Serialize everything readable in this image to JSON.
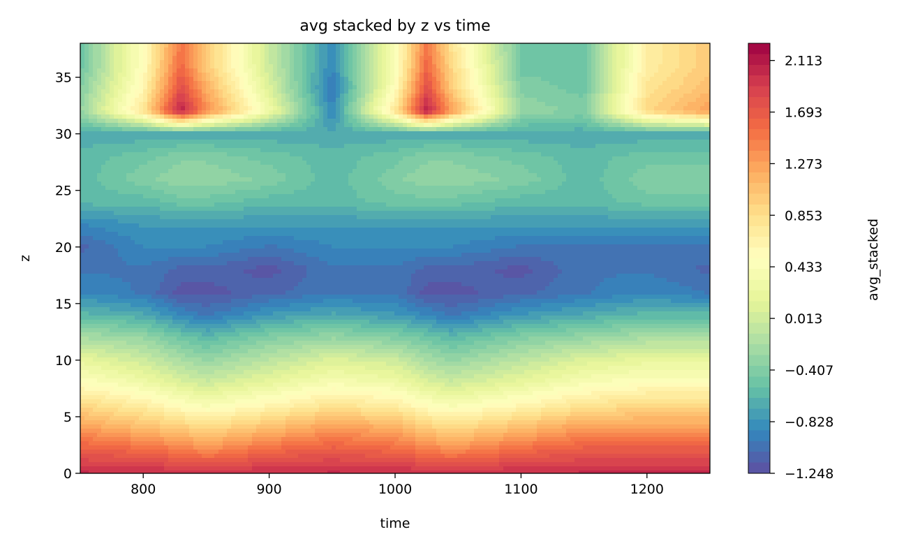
{
  "chart_data": {
    "type": "heatmap",
    "title": "avg stacked by z vs time",
    "xlabel": "time",
    "ylabel": "z",
    "colorbar_label": "avg_stacked",
    "xlim": [
      750,
      1250
    ],
    "ylim": [
      0,
      38
    ],
    "x_ticks": [
      800,
      900,
      1000,
      1100,
      1200
    ],
    "x_tick_labels": [
      "800",
      "900",
      "1000",
      "1100",
      "1200"
    ],
    "y_ticks": [
      0,
      5,
      10,
      15,
      20,
      25,
      30,
      35
    ],
    "y_tick_labels": [
      "0",
      "5",
      "10",
      "15",
      "20",
      "25",
      "30",
      "35"
    ],
    "colorbar_range": [
      -1.248,
      2.253
    ],
    "colorbar_ticks": [
      -1.248,
      -0.828,
      -0.407,
      0.013,
      0.433,
      0.853,
      1.273,
      1.693,
      2.113
    ],
    "colorbar_tick_labels": [
      "−1.248",
      "−0.828",
      "−0.407",
      "0.013",
      "0.433",
      "0.853",
      "1.273",
      "1.693",
      "2.113"
    ],
    "colormap": "Spectral_r",
    "levels": 40,
    "field_samples": {
      "z": [
        0,
        2,
        4,
        6,
        8,
        10,
        12,
        14,
        16,
        18,
        20,
        22,
        24,
        26,
        28,
        30,
        32,
        34,
        36,
        38
      ],
      "time": [
        750,
        800,
        830,
        850,
        900,
        950,
        1000,
        1025,
        1045,
        1100,
        1150,
        1200,
        1250
      ],
      "values": [
        [
          2.0,
          2.0,
          2.0,
          2.0,
          2.0,
          2.0,
          2.0,
          2.0,
          2.0,
          2.0,
          2.0,
          2.0,
          2.0
        ],
        [
          1.7,
          1.6,
          1.5,
          1.4,
          1.6,
          1.7,
          1.6,
          1.5,
          1.4,
          1.6,
          1.7,
          1.7,
          1.7
        ],
        [
          1.3,
          1.1,
          1.0,
          0.9,
          1.1,
          1.3,
          1.2,
          1.0,
          0.9,
          1.1,
          1.3,
          1.3,
          1.3
        ],
        [
          0.9,
          0.7,
          0.5,
          0.4,
          0.6,
          0.8,
          0.7,
          0.5,
          0.4,
          0.6,
          0.8,
          0.9,
          0.9
        ],
        [
          0.5,
          0.3,
          0.1,
          0.0,
          0.2,
          0.4,
          0.3,
          0.1,
          0.0,
          0.2,
          0.4,
          0.5,
          0.5
        ],
        [
          0.2,
          0.0,
          -0.2,
          -0.3,
          -0.1,
          0.1,
          0.0,
          -0.2,
          -0.3,
          -0.1,
          0.1,
          0.2,
          0.2
        ],
        [
          -0.2,
          -0.3,
          -0.5,
          -0.6,
          -0.4,
          -0.3,
          -0.4,
          -0.5,
          -0.6,
          -0.4,
          -0.3,
          -0.2,
          -0.2
        ],
        [
          -0.6,
          -0.7,
          -0.9,
          -1.0,
          -0.8,
          -0.7,
          -0.8,
          -0.9,
          -1.0,
          -0.8,
          -0.7,
          -0.6,
          -0.6
        ],
        [
          -0.9,
          -1.0,
          -1.2,
          -1.2,
          -1.1,
          -1.0,
          -1.0,
          -1.2,
          -1.2,
          -1.1,
          -1.0,
          -0.9,
          -1.0
        ],
        [
          -1.0,
          -1.0,
          -1.1,
          -1.1,
          -1.2,
          -1.0,
          -1.0,
          -1.1,
          -1.1,
          -1.2,
          -1.0,
          -1.0,
          -1.1
        ],
        [
          -1.1,
          -0.9,
          -0.9,
          -0.9,
          -1.0,
          -0.9,
          -0.9,
          -0.9,
          -0.9,
          -1.0,
          -1.0,
          -1.0,
          -1.0
        ],
        [
          -0.9,
          -0.8,
          -0.8,
          -0.8,
          -0.8,
          -0.8,
          -0.8,
          -0.8,
          -0.8,
          -0.8,
          -0.8,
          -0.8,
          -0.8
        ],
        [
          -0.6,
          -0.6,
          -0.5,
          -0.5,
          -0.6,
          -0.6,
          -0.5,
          -0.5,
          -0.5,
          -0.6,
          -0.6,
          -0.5,
          -0.5
        ],
        [
          -0.6,
          -0.4,
          -0.3,
          -0.3,
          -0.4,
          -0.6,
          -0.4,
          -0.3,
          -0.3,
          -0.4,
          -0.6,
          -0.4,
          -0.4
        ],
        [
          -0.6,
          -0.5,
          -0.4,
          -0.4,
          -0.5,
          -0.6,
          -0.5,
          -0.4,
          -0.4,
          -0.5,
          -0.6,
          -0.5,
          -0.5
        ],
        [
          -0.7,
          -0.7,
          -0.7,
          -0.7,
          -0.7,
          -0.7,
          -0.7,
          -0.7,
          -0.7,
          -0.7,
          -0.7,
          -0.7,
          -0.7
        ],
        [
          -0.3,
          0.8,
          2.1,
          1.4,
          0.3,
          -0.9,
          0.8,
          2.1,
          1.3,
          -0.3,
          -0.4,
          0.9,
          1.3
        ],
        [
          -0.4,
          0.6,
          1.8,
          1.2,
          0.1,
          -1.0,
          0.5,
          1.8,
          1.0,
          -0.4,
          -0.5,
          0.8,
          1.1
        ],
        [
          -0.5,
          0.5,
          1.6,
          1.0,
          0.0,
          -0.9,
          0.4,
          1.6,
          0.9,
          -0.5,
          -0.5,
          0.7,
          1.0
        ],
        [
          -0.5,
          0.5,
          1.5,
          1.0,
          0.0,
          -0.9,
          0.4,
          1.5,
          0.8,
          -0.5,
          -0.5,
          0.7,
          1.0
        ]
      ]
    }
  }
}
